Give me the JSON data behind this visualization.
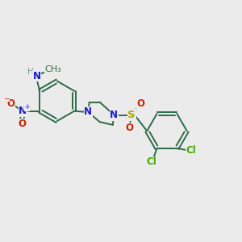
{
  "background_color": "#ebebeb",
  "bond_color": "#2d6b4a",
  "N_color": "#1a1acc",
  "O_color": "#cc2200",
  "S_color": "#aaaa00",
  "Cl_color": "#44aa00",
  "H_color": "#7a9a8a",
  "line_width": 1.4,
  "font_size": 8.5,
  "xlim": [
    0,
    12
  ],
  "ylim": [
    0,
    10
  ]
}
